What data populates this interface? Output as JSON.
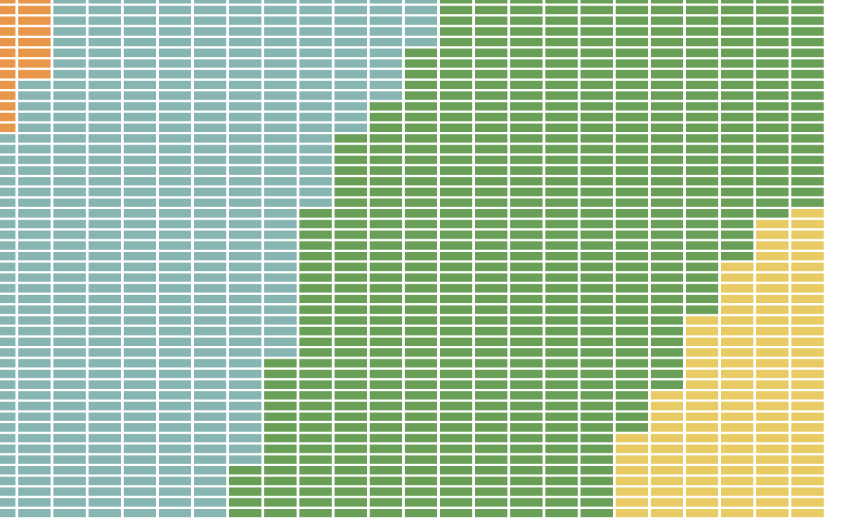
{
  "chart_data": {
    "type": "waffle",
    "series": [
      {
        "color": "#e8974a",
        "values": [
          13,
          8,
          0,
          0,
          0,
          0,
          0,
          0,
          0,
          0,
          0,
          0,
          0,
          0,
          0,
          0,
          0,
          0,
          0,
          0,
          0,
          0,
          0,
          0
        ]
      },
      {
        "color": "#86b5b2",
        "values": [
          36,
          41,
          49,
          49,
          49,
          49,
          49,
          44,
          34,
          20,
          13,
          10,
          5,
          0,
          0,
          0,
          0,
          0,
          0,
          0,
          0,
          0,
          0,
          0
        ]
      },
      {
        "color": "#6a9f58",
        "values": [
          0,
          0,
          0,
          0,
          0,
          0,
          0,
          5,
          15,
          29,
          36,
          39,
          44,
          49,
          49,
          49,
          49,
          49,
          41,
          37,
          30,
          25,
          21,
          20
        ]
      },
      {
        "color": "#e8cb65",
        "values": [
          0,
          0,
          0,
          0,
          0,
          0,
          0,
          0,
          0,
          0,
          0,
          0,
          0,
          0,
          0,
          0,
          0,
          0,
          8,
          12,
          19,
          24,
          28,
          29
        ]
      }
    ]
  }
}
